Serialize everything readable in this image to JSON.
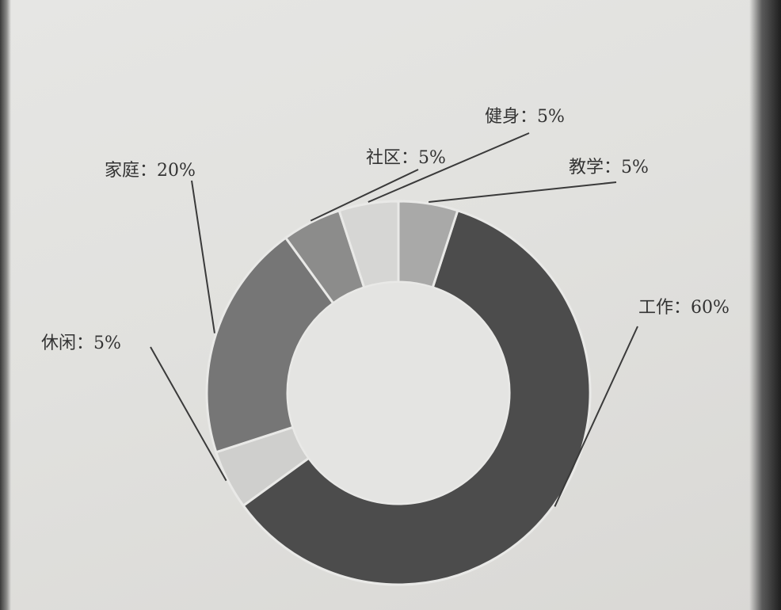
{
  "chart_data": {
    "type": "donut",
    "title": "",
    "unit": "%",
    "slices": [
      {
        "label": "工作",
        "value": 60,
        "display": "工作：60%",
        "color": "#4c4c4c"
      },
      {
        "label": "休闲",
        "value": 5,
        "display": "休闲：5%",
        "color": "#cfcfcd"
      },
      {
        "label": "家庭",
        "value": 20,
        "display": "家庭：20%",
        "color": "#767676"
      },
      {
        "label": "社区",
        "value": 5,
        "display": "社区：5%",
        "color": "#8c8c8b"
      },
      {
        "label": "健身",
        "value": 5,
        "display": "健身：5%",
        "color": "#d6d6d4"
      },
      {
        "label": "教学",
        "value": 5,
        "display": "教学：5%",
        "color": "#a9a9a8"
      }
    ]
  }
}
